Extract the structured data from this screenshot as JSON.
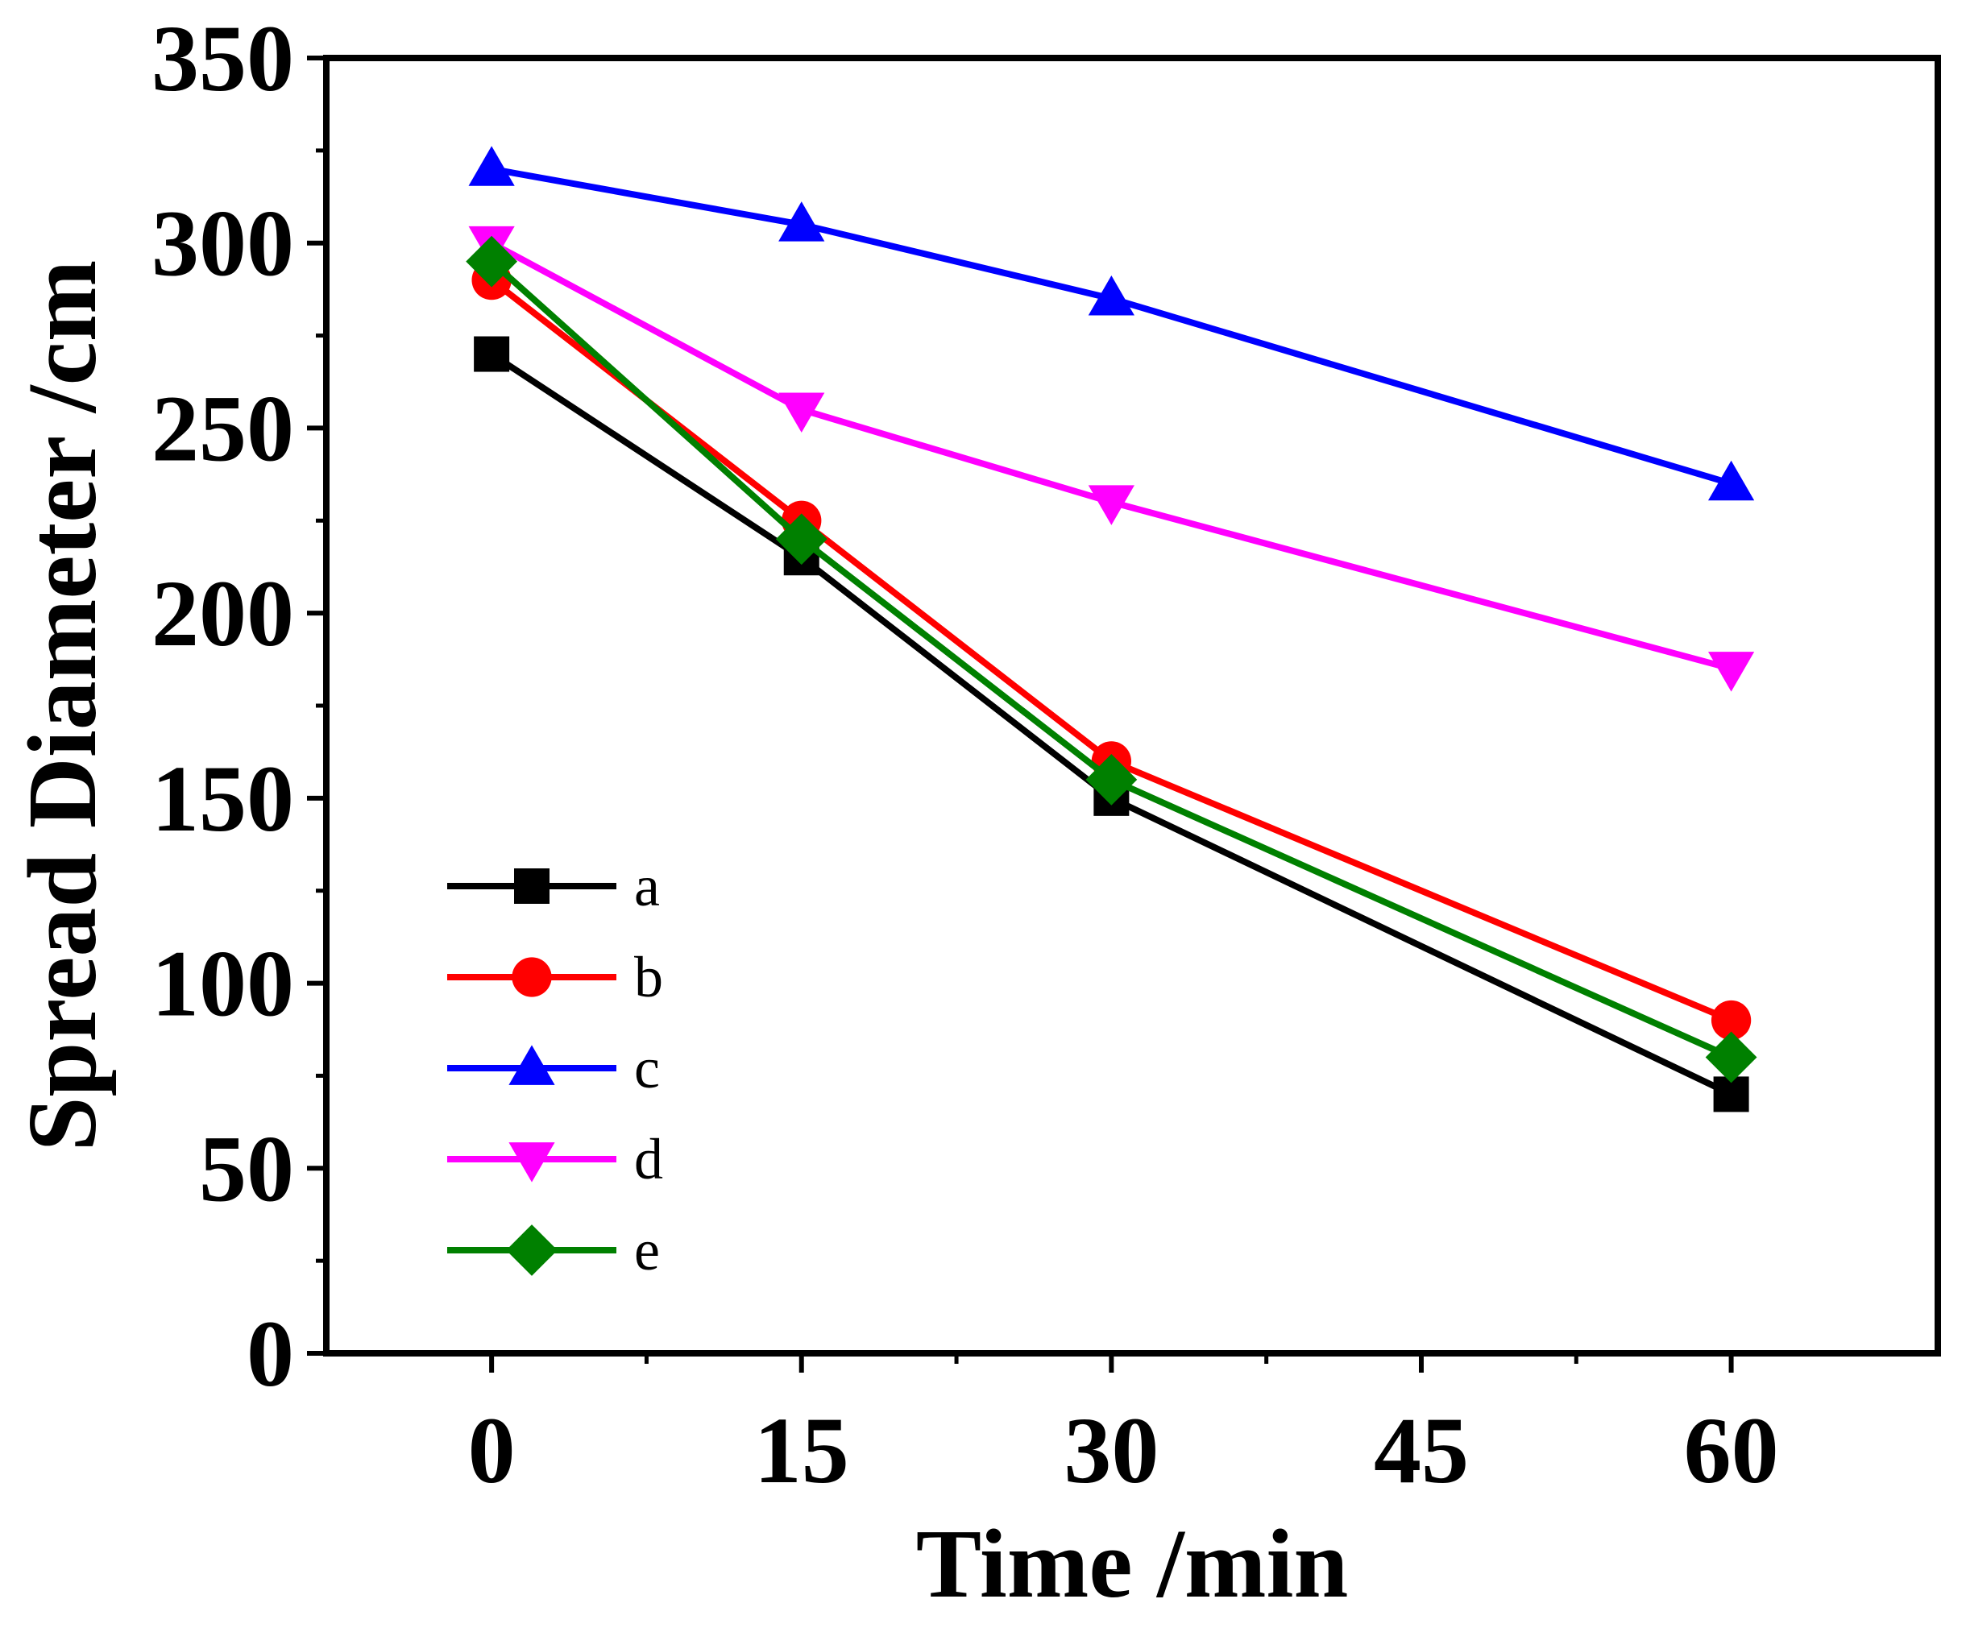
{
  "chart_data": {
    "type": "line",
    "title": "",
    "xlabel": "Time /min",
    "ylabel": "Spread Diameter /cm",
    "xlim": [
      -8,
      70
    ],
    "ylim": [
      0,
      350
    ],
    "x_ticks": [
      0,
      15,
      30,
      45,
      60
    ],
    "y_ticks": [
      0,
      50,
      100,
      150,
      200,
      250,
      300,
      350
    ],
    "x_tick_labels": [
      "0",
      "15",
      "30",
      "45",
      "60"
    ],
    "y_tick_labels": [
      "0",
      "50",
      "100",
      "150",
      "200",
      "250",
      "300",
      "350"
    ],
    "grid": false,
    "legend_position": "lower-left",
    "x": [
      0,
      15,
      30,
      60
    ],
    "series": [
      {
        "name": "a",
        "values": [
          270,
          215,
          150,
          70
        ],
        "color": "#000000",
        "marker": "square"
      },
      {
        "name": "b",
        "values": [
          290,
          225,
          160,
          90
        ],
        "color": "#ff0000",
        "marker": "circle"
      },
      {
        "name": "c",
        "values": [
          320,
          305,
          285,
          235
        ],
        "color": "#0000ff",
        "marker": "triangle-up"
      },
      {
        "name": "d",
        "values": [
          300,
          255,
          230,
          185
        ],
        "color": "#ff00ff",
        "marker": "triangle-down"
      },
      {
        "name": "e",
        "values": [
          295,
          220,
          155,
          80
        ],
        "color": "#008000",
        "marker": "diamond"
      }
    ]
  }
}
